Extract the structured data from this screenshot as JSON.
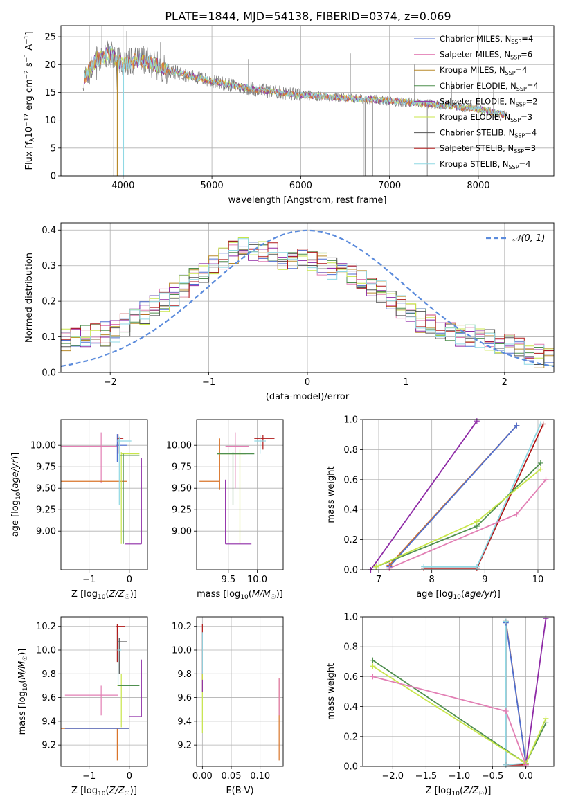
{
  "title": "PLATE=1844, MJD=54138, FIBERID=0374, z=0.069",
  "colors": {
    "chabrier_miles": "#4f6fd0",
    "salpeter_miles": "#e27fb4",
    "kroupa_miles": "#b88a2a",
    "chabrier_elodie": "#4f8f4f",
    "salpeter_elodie": "#8e2aa6",
    "kroupa_elodie": "#c8e64a",
    "chabrier_stelib": "#555555",
    "salpeter_stelib": "#b01818",
    "kroupa_stelib": "#8fd8e4",
    "orange": "#d9752a",
    "normal": "#5b8bdc"
  },
  "chart_data": [
    {
      "id": "spectrum",
      "type": "line",
      "xlabel": "wavelength [Angstrom, rest frame]",
      "ylabel": "Flux [f_λ 10^-17 erg cm^-2 s^-1 A^-1]",
      "xlim": [
        3300,
        8850
      ],
      "ylim": [
        0,
        27
      ],
      "xticks": [
        4000,
        5000,
        6000,
        7000,
        8000
      ],
      "yticks": [
        0,
        5,
        10,
        15,
        20,
        25
      ],
      "legend_position": "top-right",
      "legend": [
        {
          "label": "Chabrier MILES, N",
          "sub": "SSP",
          "suffix": "=4",
          "color_key": "chabrier_miles"
        },
        {
          "label": "Salpeter MILES, N",
          "sub": "SSP",
          "suffix": "=6",
          "color_key": "salpeter_miles"
        },
        {
          "label": "Kroupa MILES, N",
          "sub": "SSP",
          "suffix": "=4",
          "color_key": "kroupa_miles"
        },
        {
          "label": "Chabrier ELODIE, N",
          "sub": "SSP",
          "suffix": "=4",
          "color_key": "chabrier_elodie"
        },
        {
          "label": "Salpeter ELODIE, N",
          "sub": "SSP",
          "suffix": "=2",
          "color_key": "salpeter_elodie"
        },
        {
          "label": "Kroupa ELODIE, N",
          "sub": "SSP",
          "suffix": "=3",
          "color_key": "kroupa_elodie"
        },
        {
          "label": "Chabrier STELIB, N",
          "sub": "SSP",
          "suffix": "=4",
          "color_key": "chabrier_stelib"
        },
        {
          "label": "Salpeter STELIB, N",
          "sub": "SSP",
          "suffix": "=3",
          "color_key": "salpeter_stelib"
        },
        {
          "label": "Kroupa STELIB, N",
          "sub": "SSP",
          "suffix": "=4",
          "color_key": "kroupa_stelib"
        }
      ],
      "continuum": [
        [
          3550,
          17
        ],
        [
          3700,
          21
        ],
        [
          3850,
          22
        ],
        [
          4000,
          20
        ],
        [
          4200,
          21
        ],
        [
          4500,
          19
        ],
        [
          5000,
          17
        ],
        [
          5500,
          15.5
        ],
        [
          6000,
          14.5
        ],
        [
          6500,
          14
        ],
        [
          7000,
          13.5
        ],
        [
          7400,
          13
        ],
        [
          8000,
          12
        ],
        [
          8300,
          11
        ]
      ]
    },
    {
      "id": "residuals",
      "type": "line",
      "xlabel": "(data-model)/error",
      "ylabel": "Normed distribution",
      "xlim": [
        -2.5,
        2.5
      ],
      "ylim": [
        0,
        0.42
      ],
      "xticks": [
        -2,
        -1,
        0,
        1,
        2
      ],
      "yticks": [
        0.0,
        0.1,
        0.2,
        0.3,
        0.4
      ],
      "legend_label": "𝒩(0, 1)",
      "normal_curve": {
        "mean": 0,
        "sigma": 1
      },
      "histogram_envelope": [
        [
          -2.5,
          0.09
        ],
        [
          -2.0,
          0.11
        ],
        [
          -1.5,
          0.19
        ],
        [
          -1.0,
          0.29
        ],
        [
          -0.7,
          0.35
        ],
        [
          -0.5,
          0.34
        ],
        [
          -0.2,
          0.32
        ],
        [
          0.2,
          0.3
        ],
        [
          0.5,
          0.27
        ],
        [
          0.8,
          0.22
        ],
        [
          1.0,
          0.17
        ],
        [
          1.3,
          0.12
        ],
        [
          1.5,
          0.11
        ],
        [
          2.0,
          0.08
        ],
        [
          2.5,
          0.03
        ]
      ]
    },
    {
      "id": "age_vs_z",
      "type": "scatter",
      "xlabel": "Z [log₁₀(Z/Z☉)]",
      "ylabel": "age  [log₁₀(age/yr)]",
      "xlim": [
        -1.7,
        0.45
      ],
      "ylim": [
        8.55,
        10.3
      ],
      "xticks": [
        -1,
        0
      ],
      "yticks": [
        9.0,
        9.25,
        9.5,
        9.75,
        10.0
      ],
      "ytick_labels": [
        "9.00",
        "9.25",
        "9.50",
        "9.75",
        "10.00"
      ]
    },
    {
      "id": "age_vs_mass",
      "type": "scatter",
      "xlabel": "mass [log₁₀(M/M☉)]",
      "xlim": [
        8.95,
        10.45
      ],
      "ylim": [
        8.55,
        10.3
      ],
      "xticks": [
        9.5,
        10.0
      ],
      "xtick_labels": [
        "9.5",
        "10.0"
      ],
      "yticks": [
        9.0,
        9.25,
        9.5,
        9.75,
        10.0
      ],
      "ytick_labels": [
        "9.00",
        "9.25",
        "9.50",
        "9.75",
        "10.00"
      ]
    },
    {
      "id": "massweight_vs_age",
      "type": "line",
      "xlabel": "age  [log₁₀(age/yr)]",
      "ylabel": "mass weight",
      "xlim": [
        6.7,
        10.3
      ],
      "ylim": [
        0,
        1
      ],
      "xticks": [
        7,
        8,
        9,
        10
      ],
      "yticks": [
        0.0,
        0.2,
        0.4,
        0.6,
        0.8,
        1.0
      ],
      "series": [
        {
          "color_key": "salpeter_elodie",
          "points": [
            [
              6.85,
              0
            ],
            [
              8.85,
              0.99
            ]
          ]
        },
        {
          "color_key": "orange",
          "points": [
            [
              7.2,
              0.03
            ],
            [
              9.6,
              0.96
            ]
          ]
        },
        {
          "color_key": "chabrier_miles",
          "points": [
            [
              7.2,
              0.02
            ],
            [
              9.6,
              0.96
            ]
          ]
        },
        {
          "color_key": "salpeter_stelib",
          "points": [
            [
              7.85,
              0.01
            ],
            [
              8.85,
              0.01
            ],
            [
              10.1,
              0.97
            ]
          ]
        },
        {
          "color_key": "kroupa_stelib",
          "points": [
            [
              7.85,
              0.02
            ],
            [
              8.85,
              0.02
            ],
            [
              10.05,
              0.97
            ]
          ]
        },
        {
          "color_key": "chabrier_elodie",
          "points": [
            [
              6.95,
              0.02
            ],
            [
              8.85,
              0.29
            ],
            [
              10.05,
              0.71
            ]
          ]
        },
        {
          "color_key": "kroupa_elodie",
          "points": [
            [
              6.95,
              0.02
            ],
            [
              8.85,
              0.32
            ],
            [
              10.05,
              0.67
            ]
          ]
        },
        {
          "color_key": "salpeter_miles",
          "points": [
            [
              7.2,
              0.01
            ],
            [
              9.6,
              0.37
            ],
            [
              10.15,
              0.6
            ]
          ]
        }
      ]
    },
    {
      "id": "mass_vs_z",
      "type": "scatter",
      "xlabel": "Z [log₁₀(Z/Z☉)]",
      "ylabel": "mass [log₁₀(M/M☉)]",
      "xlim": [
        -1.7,
        0.45
      ],
      "ylim": [
        9.02,
        10.28
      ],
      "xticks": [
        -1,
        0
      ],
      "yticks": [
        9.2,
        9.4,
        9.6,
        9.8,
        10.0,
        10.2
      ],
      "ytick_labels": [
        "9.2",
        "9.4",
        "9.6",
        "9.8",
        "10.0",
        "10.2"
      ]
    },
    {
      "id": "mass_vs_ebv",
      "type": "scatter",
      "xlabel": "E(B-V)",
      "xlim": [
        -0.01,
        0.14
      ],
      "ylim": [
        9.02,
        10.28
      ],
      "xticks": [
        0.0,
        0.05,
        0.1
      ],
      "xtick_labels": [
        "0.00",
        "0.05",
        "0.10"
      ],
      "yticks": [
        9.2,
        9.4,
        9.6,
        9.8,
        10.0,
        10.2
      ],
      "ytick_labels": [
        "9.2",
        "9.4",
        "9.6",
        "9.8",
        "10.0",
        "10.2"
      ]
    },
    {
      "id": "massweight_vs_z",
      "type": "line",
      "xlabel": "Z [log₁₀(Z/Z☉)]",
      "ylabel": "mass weight",
      "xlim": [
        -2.45,
        0.42
      ],
      "ylim": [
        0,
        1
      ],
      "xticks": [
        -2.0,
        -1.5,
        -1.0,
        -0.5,
        0.0
      ],
      "xtick_labels": [
        "−2.0",
        "−1.5",
        "−1.0",
        "−0.5",
        "0.0"
      ],
      "yticks": [
        0.0,
        0.2,
        0.4,
        0.6,
        0.8,
        1.0
      ],
      "series": [
        {
          "color_key": "salpeter_elodie",
          "points": [
            [
              0.0,
              0.01
            ],
            [
              0.3,
              0.99
            ]
          ]
        },
        {
          "color_key": "orange",
          "points": [
            [
              -0.3,
              0.97
            ],
            [
              0.0,
              0.02
            ]
          ]
        },
        {
          "color_key": "chabrier_miles",
          "points": [
            [
              -0.3,
              0.96
            ],
            [
              0.0,
              0.02
            ]
          ]
        },
        {
          "color_key": "salpeter_stelib",
          "points": [
            [
              -0.3,
              0.97
            ],
            [
              -0.3,
              0.01
            ],
            [
              0.0,
              0.01
            ]
          ]
        },
        {
          "color_key": "kroupa_stelib",
          "points": [
            [
              -0.3,
              0.97
            ],
            [
              -0.3,
              0.01
            ],
            [
              0.0,
              0.02
            ]
          ]
        },
        {
          "color_key": "chabrier_elodie",
          "points": [
            [
              -2.3,
              0.71
            ],
            [
              0.0,
              0.02
            ],
            [
              0.3,
              0.29
            ]
          ]
        },
        {
          "color_key": "kroupa_elodie",
          "points": [
            [
              -2.3,
              0.67
            ],
            [
              0.0,
              0.02
            ],
            [
              0.3,
              0.32
            ]
          ]
        },
        {
          "color_key": "salpeter_miles",
          "points": [
            [
              -2.3,
              0.6
            ],
            [
              -0.3,
              0.37
            ],
            [
              0.0,
              0.01
            ]
          ]
        }
      ]
    }
  ]
}
